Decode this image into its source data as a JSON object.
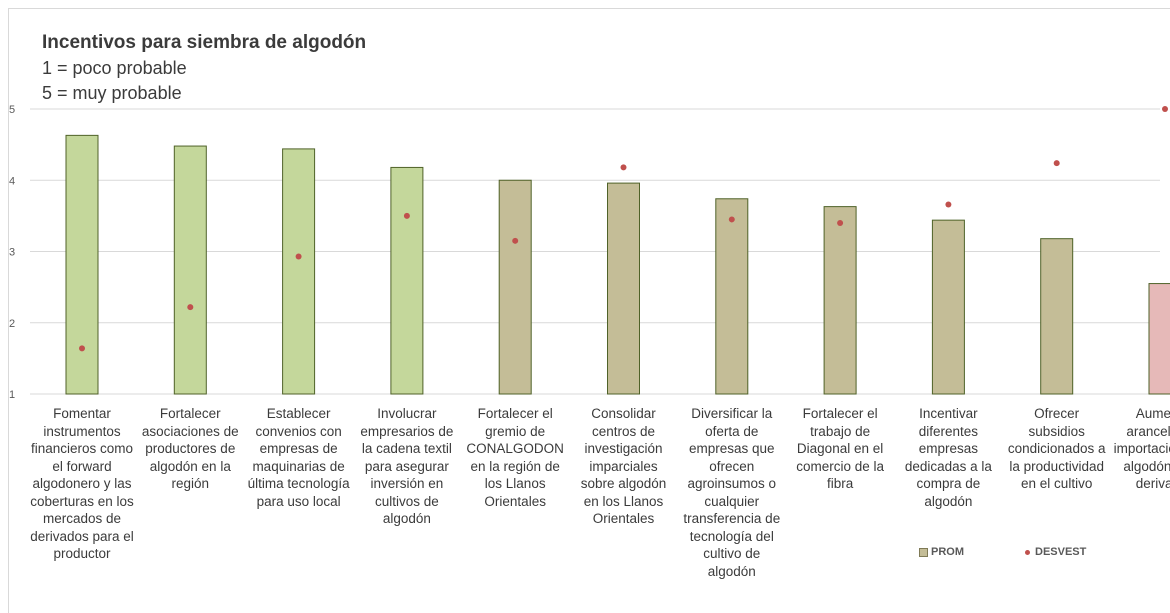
{
  "title": "Incentivos para siembra de algodón",
  "subtitle_1": "1 = poco probable",
  "subtitle_2": "5 = muy probable",
  "legend": {
    "prom": "PROM",
    "desvest": "DESVEST"
  },
  "colors": {
    "green": "#c4d79b",
    "tan": "#c4bd97",
    "pink": "#e6b9b8",
    "bar_border": "#4f6228",
    "dot": "#c0504d",
    "grid": "#d9d9d9",
    "axis_text": "#595959"
  },
  "chart_data": {
    "type": "bar",
    "y_ticks": [
      "1",
      "2",
      "3",
      "4",
      "5"
    ],
    "ylim": [
      1,
      5
    ],
    "grid": true,
    "legend_position": "bottom-right",
    "categories": [
      "Fomentar instrumentos financieros como el forward algodonero y las coberturas en los mercados de derivados para el productor",
      "Fortalecer asociaciones de productores de algodón en la región",
      "Establecer convenios con empresas de maquinarias de última tecnología para uso local",
      "Involucrar empresarios de la cadena textil para asegurar inversión en cultivos de algodón",
      "Fortalecer el gremio de CONALGODON en la región de los Llanos Orientales",
      "Consolidar centros de investigación imparciales sobre algodón en los Llanos Orientales",
      "Diversificar la oferta de empresas que ofrecen agroinsumos o cualquier transferencia de tecnología del cultivo de algodón",
      "Fortalecer el trabajo de Diagonal en el comercio de la fibra",
      "Incentivar diferentes empresas dedicadas a la compra de algodón",
      "Ofrecer subsidios condicionados a la productividad en el cultivo",
      "Aumentar aranceles de importaciones de algodón y sus derivados"
    ],
    "series": [
      {
        "name": "PROM",
        "values": [
          4.63,
          4.48,
          4.44,
          4.18,
          4.0,
          3.96,
          3.74,
          3.63,
          3.44,
          3.18,
          2.55
        ],
        "colors": [
          "green",
          "green",
          "green",
          "green",
          "tan",
          "tan",
          "tan",
          "tan",
          "tan",
          "tan",
          "pink"
        ]
      },
      {
        "name": "DESVEST",
        "values": [
          1.64,
          2.22,
          2.93,
          3.5,
          3.15,
          4.18,
          3.45,
          3.4,
          3.66,
          4.24,
          5.0
        ]
      }
    ]
  }
}
